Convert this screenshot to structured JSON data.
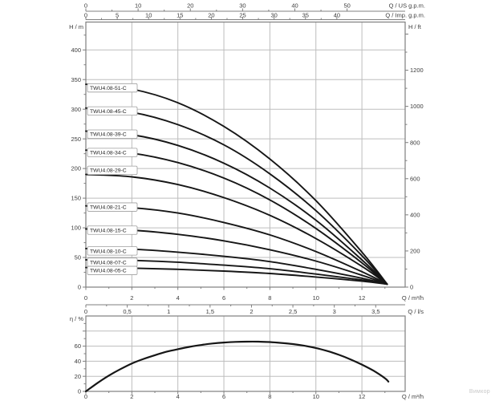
{
  "watermark": {
    "text": "Вимкор"
  },
  "colors": {
    "curve": "#161616",
    "grid": "#bdbdbd",
    "frame": "#7f7f7f",
    "tick_text": "#3c3c3c",
    "box_border": "#9e9e9e",
    "box_fill": "#ffffff",
    "watermark": "#c9c9c9"
  },
  "chart_data": [
    {
      "type": "line",
      "id": "head-capacity-chart",
      "title": "",
      "xlim_m3h": [
        0,
        13.88
      ],
      "ylim_m": [
        0,
        447
      ],
      "grid": true,
      "x_axes": {
        "m3h": {
          "label": "Q / m³/h",
          "ticks": [
            0,
            2,
            4,
            6,
            8,
            10,
            12
          ],
          "minor_step": 1,
          "minor_max": 13
        },
        "ls": {
          "label": "Q / l/s",
          "to_m3h": 3.6,
          "minor_step": 0.25,
          "ticks": [
            {
              "v": 0,
              "t": "0"
            },
            {
              "v": 0.5,
              "t": "0,5"
            },
            {
              "v": 1,
              "t": "1"
            },
            {
              "v": 1.5,
              "t": "1,5"
            },
            {
              "v": 2,
              "t": "2"
            },
            {
              "v": 2.5,
              "t": "2,5"
            },
            {
              "v": 3,
              "t": "3"
            },
            {
              "v": 3.5,
              "t": "3,5"
            }
          ]
        },
        "us_gpm": {
          "label": "Q / US g.p.m.",
          "ticks": [
            0,
            10,
            20,
            30,
            40,
            50
          ],
          "minor_step": 5,
          "to_m3h": 0.22712
        },
        "imp_gpm": {
          "label": "Q / Imp. g.p.m.",
          "ticks": [
            0,
            5,
            10,
            15,
            20,
            25,
            30,
            35,
            40
          ],
          "minor_step": 2.5,
          "to_m3h": 0.27277
        }
      },
      "y_axes": {
        "m": {
          "label": "H / m",
          "ticks": [
            0,
            50,
            100,
            150,
            200,
            250,
            300,
            350,
            400
          ],
          "minor_step": 25,
          "minor_max": 425
        },
        "ft": {
          "label": "H / ft",
          "ticks": [
            0,
            200,
            400,
            600,
            800,
            1000,
            1200
          ],
          "minor_step": 100,
          "minor_max": 1400,
          "to_m": 0.3048
        }
      },
      "end_point": {
        "q": 13.1,
        "h": 5
      },
      "series": [
        {
          "name": "TWU4.08-51-C",
          "shutoff_head_m": 342,
          "label_h_m": 336,
          "q_m3h": [
            0,
            2,
            4,
            6,
            8,
            10,
            12,
            13.1
          ],
          "h_m": [
            342,
            334,
            311,
            271,
            216,
            146,
            59,
            5
          ]
        },
        {
          "name": "TWU4.08-45-C",
          "shutoff_head_m": 302,
          "label_h_m": 297,
          "q_m3h": [
            0,
            2,
            4,
            6,
            8,
            10,
            12,
            13.1
          ],
          "h_m": [
            302,
            295,
            274,
            240,
            191,
            129,
            53,
            5
          ]
        },
        {
          "name": "TWU4.08-39-C",
          "shutoff_head_m": 263,
          "label_h_m": 258,
          "q_m3h": [
            0,
            2,
            4,
            6,
            8,
            10,
            12,
            13.1
          ],
          "h_m": [
            263,
            257,
            239,
            209,
            167,
            113,
            46,
            5
          ]
        },
        {
          "name": "TWU4.08-34-C",
          "shutoff_head_m": 231,
          "label_h_m": 227,
          "q_m3h": [
            0,
            2,
            4,
            6,
            8,
            10,
            12,
            13.1
          ],
          "h_m": [
            231,
            226,
            210,
            184,
            147,
            99,
            41,
            5
          ]
        },
        {
          "name": "TWU4.08-29-C",
          "shutoff_head_m": 190,
          "label_h_m": 197,
          "q_m3h": [
            0,
            2,
            4,
            6,
            8,
            10,
            12,
            13.1
          ],
          "h_m": [
            190,
            186,
            173,
            151,
            121,
            82,
            35,
            5
          ]
        },
        {
          "name": "TWU4.08-21-C",
          "shutoff_head_m": 137,
          "label_h_m": 135,
          "q_m3h": [
            0,
            2,
            4,
            6,
            8,
            10,
            12,
            13.1
          ],
          "h_m": [
            137,
            134,
            125,
            109,
            88,
            60,
            26,
            5
          ]
        },
        {
          "name": "TWU4.08-15-C",
          "shutoff_head_m": 98,
          "label_h_m": 96,
          "q_m3h": [
            0,
            2,
            4,
            6,
            8,
            10,
            12,
            13.1
          ],
          "h_m": [
            98,
            96,
            89,
            78,
            63,
            44,
            20,
            5
          ]
        },
        {
          "name": "TWU4.08-10-C",
          "shutoff_head_m": 65,
          "label_h_m": 61,
          "q_m3h": [
            0,
            2,
            4,
            6,
            8,
            10,
            12,
            13.1
          ],
          "h_m": [
            65,
            64,
            59,
            52,
            43,
            30,
            15,
            5
          ]
        },
        {
          "name": "TWU4.08-07-C",
          "shutoff_head_m": 46,
          "label_h_m": 42,
          "q_m3h": [
            0,
            2,
            4,
            6,
            8,
            10,
            12,
            13.1
          ],
          "h_m": [
            46,
            45,
            42,
            37,
            31,
            22,
            12,
            5
          ]
        },
        {
          "name": "TWU4.08-05-C",
          "shutoff_head_m": 33,
          "label_h_m": 28,
          "q_m3h": [
            0,
            2,
            4,
            6,
            8,
            10,
            12,
            13.1
          ],
          "h_m": [
            33,
            32,
            30,
            27,
            23,
            17,
            10,
            5
          ]
        }
      ]
    },
    {
      "type": "line",
      "id": "efficiency-chart",
      "title": "",
      "xlim_m3h": [
        0,
        13.88
      ],
      "ylim_pct": [
        0,
        100
      ],
      "grid": true,
      "x_axis": {
        "label": "Q / m³/h",
        "ticks": [
          0,
          2,
          4,
          6,
          8,
          10,
          12
        ],
        "minor_step": 1,
        "minor_max": 13
      },
      "y_axis": {
        "label": "η / %",
        "ticks": [
          0,
          20,
          40,
          60
        ],
        "gridlines": [
          20,
          40,
          60,
          80
        ],
        "minor_step": 10,
        "minor_max": 90
      },
      "series": [
        {
          "name": "efficiency",
          "points": [
            [
              0,
              0
            ],
            [
              0.5,
              11
            ],
            [
              1,
              21
            ],
            [
              1.5,
              29.5
            ],
            [
              2,
              37
            ],
            [
              2.5,
              43
            ],
            [
              3,
              48
            ],
            [
              3.5,
              52.5
            ],
            [
              4,
              56
            ],
            [
              4.5,
              59
            ],
            [
              5,
              61.5
            ],
            [
              5.5,
              63.5
            ],
            [
              6,
              64.8
            ],
            [
              6.5,
              65.6
            ],
            [
              7,
              66
            ],
            [
              7.5,
              66
            ],
            [
              8,
              65.4
            ],
            [
              8.5,
              64.3
            ],
            [
              9,
              62.8
            ],
            [
              9.5,
              60.5
            ],
            [
              10,
              57.5
            ],
            [
              10.5,
              53.5
            ],
            [
              11,
              48.5
            ],
            [
              11.5,
              42.5
            ],
            [
              12,
              35.5
            ],
            [
              12.5,
              27.5
            ],
            [
              13,
              17.5
            ],
            [
              13.15,
              13
            ]
          ]
        }
      ]
    }
  ]
}
